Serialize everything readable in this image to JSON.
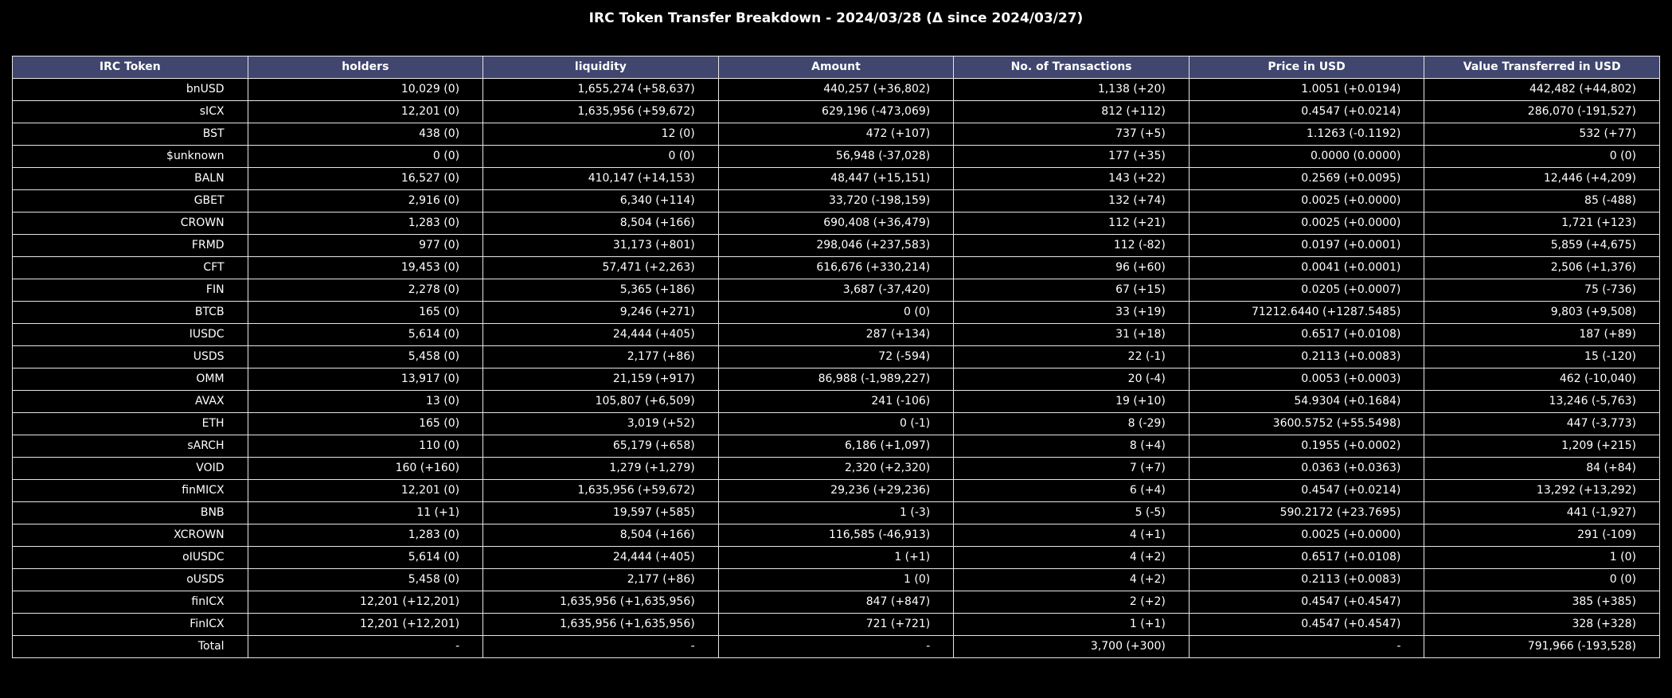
{
  "chart_data": {
    "type": "table",
    "title": "IRC Token Transfer Breakdown - 2024/03/28 (Δ since 2024/03/27)",
    "header_color": "#40466e",
    "background": "#000000",
    "columns": [
      "IRC Token",
      "holders",
      "liquidity",
      "Amount",
      "No. of Transactions",
      "Price in USD",
      "Value Transferred in USD"
    ],
    "rows": [
      [
        "bnUSD",
        "10,029 (0)",
        "1,655,274 (+58,637)",
        "440,257 (+36,802)",
        "1,138 (+20)",
        "1.0051 (+0.0194)",
        "442,482 (+44,802)"
      ],
      [
        "sICX",
        "12,201 (0)",
        "1,635,956 (+59,672)",
        "629,196 (-473,069)",
        "812 (+112)",
        "0.4547 (+0.0214)",
        "286,070 (-191,527)"
      ],
      [
        "BST",
        "438 (0)",
        "12 (0)",
        "472 (+107)",
        "737 (+5)",
        "1.1263 (-0.1192)",
        "532 (+77)"
      ],
      [
        "$unknown",
        "0 (0)",
        "0 (0)",
        "56,948 (-37,028)",
        "177 (+35)",
        "0.0000 (0.0000)",
        "0 (0)"
      ],
      [
        "BALN",
        "16,527 (0)",
        "410,147 (+14,153)",
        "48,447 (+15,151)",
        "143 (+22)",
        "0.2569 (+0.0095)",
        "12,446 (+4,209)"
      ],
      [
        "GBET",
        "2,916 (0)",
        "6,340 (+114)",
        "33,720 (-198,159)",
        "132 (+74)",
        "0.0025 (+0.0000)",
        "85 (-488)"
      ],
      [
        "CROWN",
        "1,283 (0)",
        "8,504 (+166)",
        "690,408 (+36,479)",
        "112 (+21)",
        "0.0025 (+0.0000)",
        "1,721 (+123)"
      ],
      [
        "FRMD",
        "977 (0)",
        "31,173 (+801)",
        "298,046 (+237,583)",
        "112 (-82)",
        "0.0197 (+0.0001)",
        "5,859 (+4,675)"
      ],
      [
        "CFT",
        "19,453 (0)",
        "57,471 (+2,263)",
        "616,676 (+330,214)",
        "96 (+60)",
        "0.0041 (+0.0001)",
        "2,506 (+1,376)"
      ],
      [
        "FIN",
        "2,278 (0)",
        "5,365 (+186)",
        "3,687 (-37,420)",
        "67 (+15)",
        "0.0205 (+0.0007)",
        "75 (-736)"
      ],
      [
        "BTCB",
        "165 (0)",
        "9,246 (+271)",
        "0 (0)",
        "33 (+19)",
        "71212.6440 (+1287.5485)",
        "9,803 (+9,508)"
      ],
      [
        "IUSDC",
        "5,614 (0)",
        "24,444 (+405)",
        "287 (+134)",
        "31 (+18)",
        "0.6517 (+0.0108)",
        "187 (+89)"
      ],
      [
        "USDS",
        "5,458 (0)",
        "2,177 (+86)",
        "72 (-594)",
        "22 (-1)",
        "0.2113 (+0.0083)",
        "15 (-120)"
      ],
      [
        "OMM",
        "13,917 (0)",
        "21,159 (+917)",
        "86,988 (-1,989,227)",
        "20 (-4)",
        "0.0053 (+0.0003)",
        "462 (-10,040)"
      ],
      [
        "AVAX",
        "13 (0)",
        "105,807 (+6,509)",
        "241 (-106)",
        "19 (+10)",
        "54.9304 (+0.1684)",
        "13,246 (-5,763)"
      ],
      [
        "ETH",
        "165 (0)",
        "3,019 (+52)",
        "0 (-1)",
        "8 (-29)",
        "3600.5752 (+55.5498)",
        "447 (-3,773)"
      ],
      [
        "sARCH",
        "110 (0)",
        "65,179 (+658)",
        "6,186 (+1,097)",
        "8 (+4)",
        "0.1955 (+0.0002)",
        "1,209 (+215)"
      ],
      [
        "VOID",
        "160 (+160)",
        "1,279 (+1,279)",
        "2,320 (+2,320)",
        "7 (+7)",
        "0.0363 (+0.0363)",
        "84 (+84)"
      ],
      [
        "finMICX",
        "12,201 (0)",
        "1,635,956 (+59,672)",
        "29,236 (+29,236)",
        "6 (+4)",
        "0.4547 (+0.0214)",
        "13,292 (+13,292)"
      ],
      [
        "BNB",
        "11 (+1)",
        "19,597 (+585)",
        "1 (-3)",
        "5 (-5)",
        "590.2172 (+23.7695)",
        "441 (-1,927)"
      ],
      [
        "XCROWN",
        "1,283 (0)",
        "8,504 (+166)",
        "116,585 (-46,913)",
        "4 (+1)",
        "0.0025 (+0.0000)",
        "291 (-109)"
      ],
      [
        "oIUSDC",
        "5,614 (0)",
        "24,444 (+405)",
        "1 (+1)",
        "4 (+2)",
        "0.6517 (+0.0108)",
        "1 (0)"
      ],
      [
        "oUSDS",
        "5,458 (0)",
        "2,177 (+86)",
        "1 (0)",
        "4 (+2)",
        "0.2113 (+0.0083)",
        "0 (0)"
      ],
      [
        "finICX",
        "12,201 (+12,201)",
        "1,635,956 (+1,635,956)",
        "847 (+847)",
        "2 (+2)",
        "0.4547 (+0.4547)",
        "385 (+385)"
      ],
      [
        "FinICX",
        "12,201 (+12,201)",
        "1,635,956 (+1,635,956)",
        "721 (+721)",
        "1 (+1)",
        "0.4547 (+0.4547)",
        "328 (+328)"
      ],
      [
        "Total",
        "-",
        "-",
        "-",
        "3,700 (+300)",
        "-",
        "791,966 (-193,528)"
      ]
    ]
  }
}
